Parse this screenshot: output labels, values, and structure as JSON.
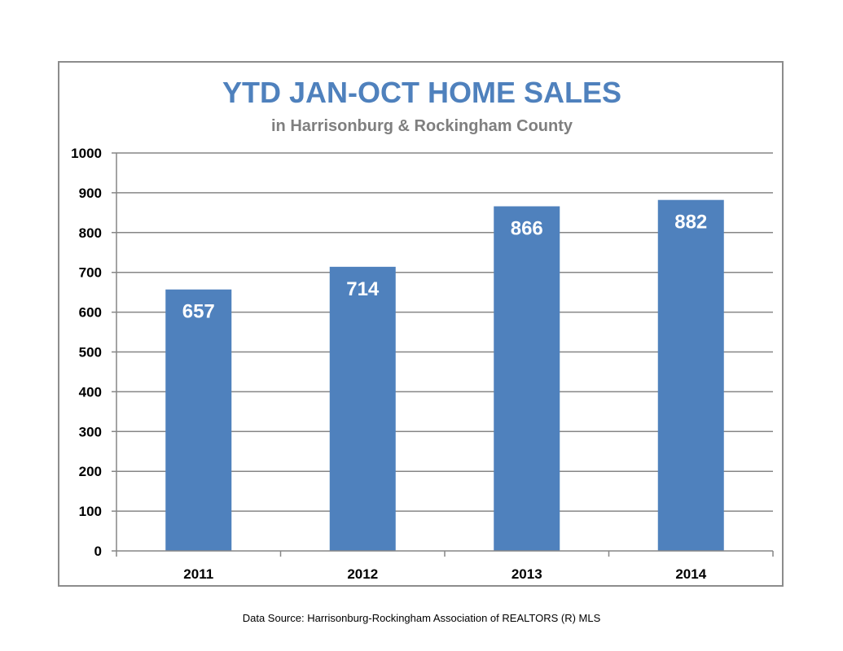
{
  "chart_data": {
    "type": "bar",
    "title": "YTD JAN-OCT HOME SALES",
    "subtitle": "in Harrisonburg & Rockingham County",
    "categories": [
      "2011",
      "2012",
      "2013",
      "2014"
    ],
    "values": [
      657,
      714,
      866,
      882
    ],
    "data_labels": [
      "657",
      "714",
      "866",
      "882"
    ],
    "y_ticks": [
      "0",
      "100",
      "200",
      "300",
      "400",
      "500",
      "600",
      "700",
      "800",
      "900",
      "1000"
    ],
    "ylim": [
      0,
      1000
    ],
    "grid": true,
    "legend": "none",
    "bar_color": "#4f81bd",
    "xlabel": "",
    "ylabel": ""
  },
  "footer": {
    "source": "Data Source: Harrisonburg-Rockingham Association of REALTORS (R) MLS"
  }
}
